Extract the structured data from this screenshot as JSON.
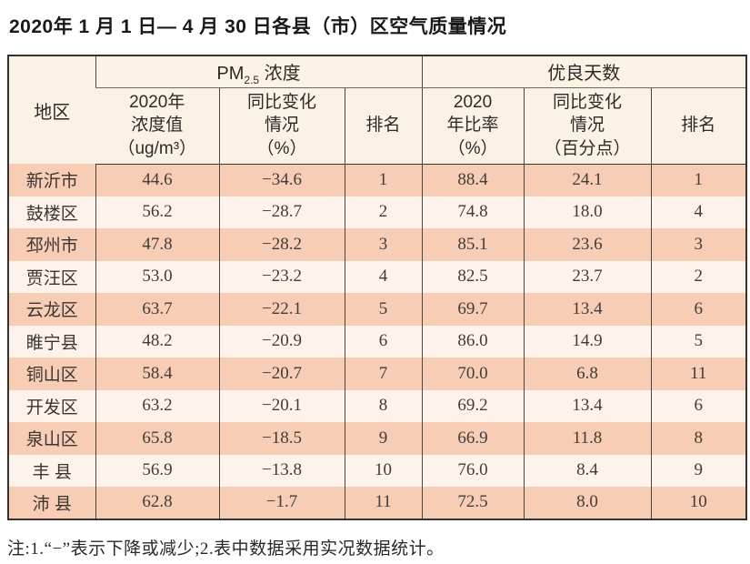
{
  "title": "2020年 1 月 1 日— 4 月 30 日各县（市）区空气质量情况",
  "note": "注:1.“−”表示下降或减少;2.表中数据采用实况数据统计。",
  "table": {
    "region_header": "地区",
    "pm_group": {
      "prefix": "PM",
      "sub": "2.5",
      "suffix": " 浓度"
    },
    "good_group": "优良天数",
    "subheaders": {
      "pm_value": "2020年\n浓度值\n（ug/m³）",
      "pm_change": "同比变化\n情况\n（%）",
      "pm_rank": "排名",
      "good_rate": "2020\n年比率\n（%）",
      "good_change": "同比变化\n情况\n（百分点）",
      "good_rank": "排名"
    },
    "rows": [
      {
        "region": "新沂市",
        "pm_value": "44.6",
        "pm_change": "−34.6",
        "pm_rank": "1",
        "good_rate": "88.4",
        "good_change": "24.1",
        "good_rank": "1"
      },
      {
        "region": "鼓楼区",
        "pm_value": "56.2",
        "pm_change": "−28.7",
        "pm_rank": "2",
        "good_rate": "74.8",
        "good_change": "18.0",
        "good_rank": "4"
      },
      {
        "region": "邳州市",
        "pm_value": "47.8",
        "pm_change": "−28.2",
        "pm_rank": "3",
        "good_rate": "85.1",
        "good_change": "23.6",
        "good_rank": "3"
      },
      {
        "region": "贾汪区",
        "pm_value": "53.0",
        "pm_change": "−23.2",
        "pm_rank": "4",
        "good_rate": "82.5",
        "good_change": "23.7",
        "good_rank": "2"
      },
      {
        "region": "云龙区",
        "pm_value": "63.7",
        "pm_change": "−22.1",
        "pm_rank": "5",
        "good_rate": "69.7",
        "good_change": "13.4",
        "good_rank": "6"
      },
      {
        "region": "睢宁县",
        "pm_value": "48.2",
        "pm_change": "−20.9",
        "pm_rank": "6",
        "good_rate": "86.0",
        "good_change": "14.9",
        "good_rank": "5"
      },
      {
        "region": "铜山区",
        "pm_value": "58.4",
        "pm_change": "−20.7",
        "pm_rank": "7",
        "good_rate": "70.0",
        "good_change": "6.8",
        "good_rank": "11"
      },
      {
        "region": "开发区",
        "pm_value": "63.2",
        "pm_change": "−20.1",
        "pm_rank": "8",
        "good_rate": "69.2",
        "good_change": "13.4",
        "good_rank": "6"
      },
      {
        "region": "泉山区",
        "pm_value": "65.8",
        "pm_change": "−18.5",
        "pm_rank": "9",
        "good_rate": "66.9",
        "good_change": "11.8",
        "good_rank": "8"
      },
      {
        "region": "丰 县",
        "pm_value": "56.9",
        "pm_change": "−13.8",
        "pm_rank": "10",
        "good_rate": "76.0",
        "good_change": "8.4",
        "good_rank": "9"
      },
      {
        "region": "沛 县",
        "pm_value": "62.8",
        "pm_change": "−1.7",
        "pm_rank": "11",
        "good_rate": "72.5",
        "good_change": "8.0",
        "good_rank": "10"
      }
    ]
  },
  "colors": {
    "row_stripe": "#f8cdb6",
    "row_light": "#fdf3eb",
    "header_bg": "#fbf2e6",
    "border_dark": "#35312d"
  }
}
